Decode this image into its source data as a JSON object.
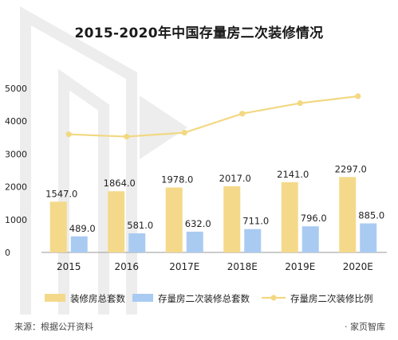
{
  "page": {
    "title": "2015-2020年中国存量房二次装修情况",
    "source": "来源：根据公开资料",
    "brand": "· 家页智库"
  },
  "colors": {
    "bar1": "#F5D98A",
    "bar2": "#A9CBF2",
    "line": "#F2D882",
    "axis": "#999999",
    "watermark": "#EDEDED"
  },
  "chart_data": {
    "type": "bar",
    "categories": [
      "2015",
      "2016",
      "2017E",
      "2018E",
      "2019E",
      "2020E"
    ],
    "series": [
      {
        "name": "装修房总套数",
        "type": "bar",
        "values": [
          1547.0,
          1864.0,
          1978.0,
          2017.0,
          2141.0,
          2297.0
        ],
        "labels": [
          "1547.0",
          "1864.0",
          "1978.0",
          "2017.0",
          "2141.0",
          "2297.0"
        ]
      },
      {
        "name": "存量房二次装修总套数",
        "type": "bar",
        "values": [
          489.0,
          581.0,
          632.0,
          711.0,
          796.0,
          885.0
        ],
        "labels": [
          "489.0",
          "581.0",
          "632.0",
          "711.0",
          "796.0",
          "885.0"
        ]
      },
      {
        "name": "存量房二次装修比例",
        "type": "line",
        "values": [
          3600,
          3530,
          3650,
          4230,
          4550,
          4760
        ]
      }
    ],
    "yticks": [
      "0",
      "1000",
      "2000",
      "3000",
      "4000",
      "5000"
    ],
    "ylim": [
      0,
      5000
    ],
    "legend_position": "bottom",
    "grid": false
  }
}
